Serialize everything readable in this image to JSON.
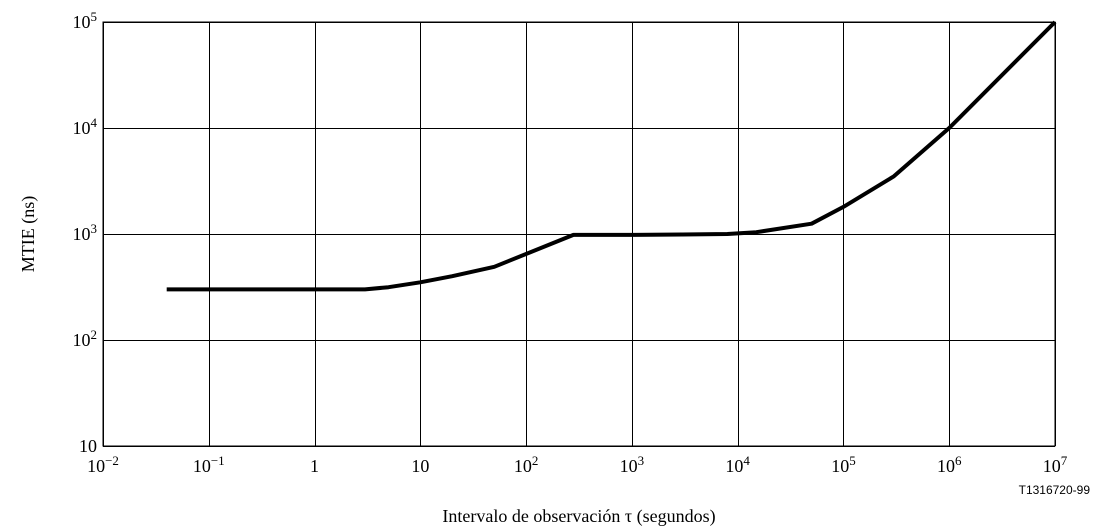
{
  "chart_data": {
    "type": "line",
    "title": "",
    "xlabel": "Intervalo de observación τ (segundos)",
    "ylabel": "MTIE (ns)",
    "xscale": "log",
    "yscale": "log",
    "xlim": [
      0.01,
      10000000
    ],
    "ylim": [
      10,
      100000
    ],
    "grid": true,
    "xticks": [
      {
        "value": 0.01,
        "base": "10",
        "exp": "−2"
      },
      {
        "value": 0.1,
        "base": "10",
        "exp": "−1"
      },
      {
        "value": 1,
        "base": "1",
        "exp": ""
      },
      {
        "value": 10,
        "base": "10",
        "exp": ""
      },
      {
        "value": 100,
        "base": "10",
        "exp": "2"
      },
      {
        "value": 1000,
        "base": "10",
        "exp": "3"
      },
      {
        "value": 10000,
        "base": "10",
        "exp": "4"
      },
      {
        "value": 100000,
        "base": "10",
        "exp": "5"
      },
      {
        "value": 1000000,
        "base": "10",
        "exp": "6"
      },
      {
        "value": 10000000,
        "base": "10",
        "exp": "7"
      }
    ],
    "yticks": [
      {
        "value": 10,
        "base": "10",
        "exp": ""
      },
      {
        "value": 100,
        "base": "10",
        "exp": "2"
      },
      {
        "value": 1000,
        "base": "10",
        "exp": "3"
      },
      {
        "value": 10000,
        "base": "10",
        "exp": "4"
      },
      {
        "value": 100000,
        "base": "10",
        "exp": "5"
      }
    ],
    "series": [
      {
        "x": [
          0.04,
          0.1,
          1,
          3,
          5,
          10,
          20,
          50,
          280,
          1000,
          3000,
          8000,
          15000,
          50000,
          100000,
          300000,
          1000000,
          10000000
        ],
        "y": [
          300,
          300,
          300,
          300,
          315,
          350,
          400,
          490,
          980,
          980,
          990,
          1000,
          1040,
          1250,
          1800,
          3500,
          10000,
          100000
        ]
      }
    ],
    "figure_code": "T1316720-99"
  }
}
